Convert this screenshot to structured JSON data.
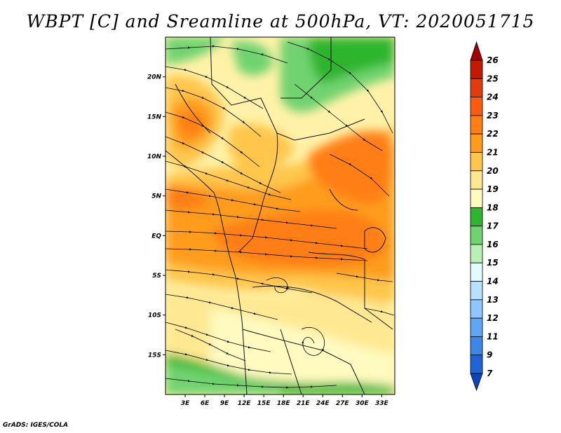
{
  "title": "WBPT [C] and Sreamline at 500hPa, VT: 2020051715",
  "footer": "GrADS: IGES/COLA",
  "map": {
    "lat_labels": [
      "20N",
      "15N",
      "10N",
      "5N",
      "EQ",
      "5S",
      "10S",
      "15S"
    ],
    "lat_values": [
      20,
      15,
      10,
      5,
      0,
      -5,
      -10,
      -15
    ],
    "lon_labels": [
      "3E",
      "6E",
      "9E",
      "12E",
      "15E",
      "18E",
      "21E",
      "24E",
      "27E",
      "30E",
      "33E"
    ],
    "lon_values": [
      3,
      6,
      9,
      12,
      15,
      18,
      21,
      24,
      27,
      30,
      33
    ],
    "extent": {
      "lon_min": 0,
      "lon_max": 35,
      "lat_min": -20,
      "lat_max": 25
    }
  },
  "colorbar": {
    "labels": [
      "26",
      "25",
      "24",
      "23",
      "22",
      "21",
      "20",
      "19",
      "18",
      "17",
      "16",
      "15",
      "14",
      "13",
      "12",
      "11",
      "9",
      "7"
    ],
    "colors": [
      "#a00000",
      "#c31a00",
      "#e23c0c",
      "#ff5a10",
      "#ff7f12",
      "#ff9c1c",
      "#ffc64c",
      "#ffe891",
      "#fffac0",
      "#2fb52f",
      "#6fd36f",
      "#b8f0b8",
      "#e2fbff",
      "#b8e0ff",
      "#8fc6ff",
      "#5fa6f5",
      "#3d87e8",
      "#1f63d6",
      "#0c45bb"
    ]
  }
}
